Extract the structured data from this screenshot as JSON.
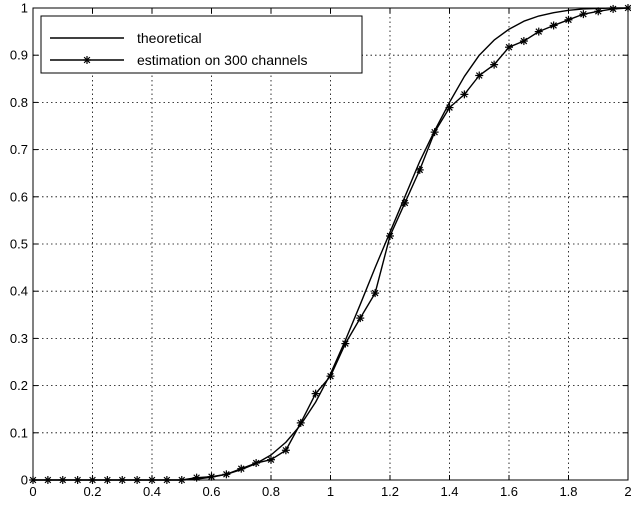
{
  "chart_data": {
    "type": "line",
    "title": "",
    "xlabel": "",
    "ylabel": "",
    "xlim": [
      0,
      2
    ],
    "ylim": [
      0,
      1
    ],
    "xticks": [
      "0",
      "0.2",
      "0.4",
      "0.6",
      "0.8",
      "1",
      "1.2",
      "1.4",
      "1.6",
      "1.8",
      "2"
    ],
    "yticks": [
      "0",
      "0.1",
      "0.2",
      "0.3",
      "0.4",
      "0.5",
      "0.6",
      "0.7",
      "0.8",
      "0.9",
      "1"
    ],
    "grid": true,
    "legend_position": "top-left",
    "series": [
      {
        "name": "theoretical",
        "marker": "none",
        "color": "#000000",
        "x": [
          0,
          0.5,
          0.55,
          0.6,
          0.65,
          0.7,
          0.75,
          0.8,
          0.85,
          0.9,
          0.95,
          1.0,
          1.05,
          1.1,
          1.15,
          1.2,
          1.25,
          1.3,
          1.35,
          1.4,
          1.45,
          1.5,
          1.55,
          1.6,
          1.65,
          1.7,
          1.75,
          1.8,
          1.85,
          1.9,
          1.95,
          2.0
        ],
        "y": [
          0,
          0,
          0.002,
          0.006,
          0.012,
          0.022,
          0.035,
          0.053,
          0.08,
          0.117,
          0.165,
          0.225,
          0.296,
          0.372,
          0.45,
          0.525,
          0.6,
          0.675,
          0.74,
          0.8,
          0.855,
          0.9,
          0.932,
          0.955,
          0.972,
          0.983,
          0.99,
          0.995,
          0.998,
          0.999,
          1.0,
          1.0
        ]
      },
      {
        "name": "estimation on 300 channels",
        "marker": "*",
        "color": "#000000",
        "x": [
          0,
          0.05,
          0.1,
          0.15,
          0.2,
          0.25,
          0.3,
          0.35,
          0.4,
          0.45,
          0.5,
          0.55,
          0.6,
          0.65,
          0.7,
          0.75,
          0.8,
          0.85,
          0.9,
          0.95,
          1.0,
          1.05,
          1.1,
          1.15,
          1.2,
          1.25,
          1.3,
          1.35,
          1.4,
          1.45,
          1.5,
          1.55,
          1.6,
          1.65,
          1.7,
          1.75,
          1.8,
          1.85,
          1.9,
          1.95,
          2.0
        ],
        "y": [
          0,
          0,
          0,
          0,
          0,
          0,
          0,
          0,
          0,
          0,
          0,
          0.005,
          0.007,
          0.012,
          0.024,
          0.036,
          0.043,
          0.063,
          0.121,
          0.183,
          0.22,
          0.289,
          0.343,
          0.396,
          0.517,
          0.587,
          0.657,
          0.737,
          0.789,
          0.817,
          0.857,
          0.88,
          0.917,
          0.93,
          0.95,
          0.963,
          0.975,
          0.987,
          0.993,
          0.998,
          1.0
        ]
      }
    ]
  }
}
